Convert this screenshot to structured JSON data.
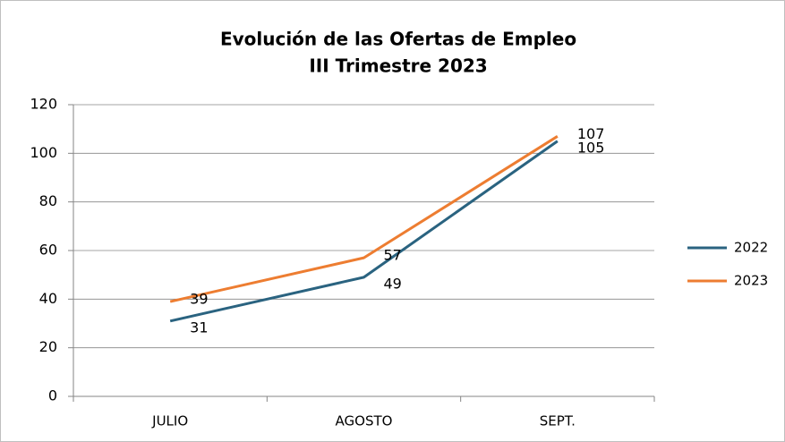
{
  "chart_data": {
    "type": "line",
    "title": [
      "Evolución de las Ofertas de Empleo",
      "III Trimestre 2023"
    ],
    "categories": [
      "JULIO",
      "AGOSTO",
      "SEPT."
    ],
    "series": [
      {
        "name": "2022",
        "color": "#2a6380",
        "values": [
          31,
          49,
          105
        ]
      },
      {
        "name": "2023",
        "color": "#ed7d31",
        "values": [
          39,
          57,
          107
        ]
      }
    ],
    "ylim": [
      0,
      120
    ],
    "yticks": [
      0,
      20,
      40,
      60,
      80,
      100,
      120
    ],
    "grid": true,
    "legend": "right"
  }
}
